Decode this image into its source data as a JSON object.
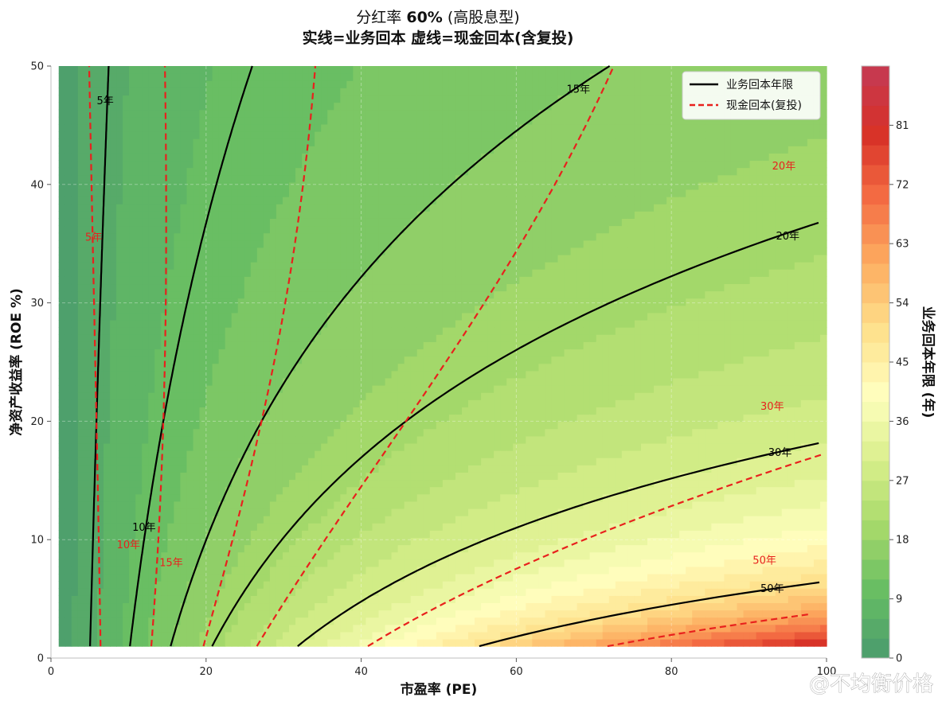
{
  "title": {
    "line1_prefix": "分红率 ",
    "line1_bold": "60%",
    "line1_suffix": " (高股息型)",
    "line2": "实线=业务回本  虚线=现金回本(含复投)"
  },
  "watermark": "@不均衡价格",
  "chart_data": {
    "type": "heatmap",
    "description_free": true,
    "xlabel": "市盈率 (PE)",
    "ylabel": "净资产收益率 (ROE %)",
    "xlim": [
      0,
      100
    ],
    "ylim": [
      0,
      50
    ],
    "x_ticks": [
      0,
      20,
      40,
      60,
      80,
      100
    ],
    "y_ticks": [
      0,
      10,
      20,
      30,
      40,
      50
    ],
    "grid": true,
    "legend_position": "top-right",
    "legend": [
      {
        "label": "业务回本年限",
        "style": "solid",
        "color": "#000000"
      },
      {
        "label": "现金回本(复投)",
        "style": "dashed",
        "color": "#e8211d"
      }
    ],
    "colorbar": {
      "label": "业务回本年限 (年)",
      "range": [
        0,
        90
      ],
      "ticks": [
        0,
        9,
        18,
        27,
        36,
        45,
        54,
        63,
        72,
        81
      ],
      "levels": 30,
      "colormap": [
        "#4a9b6e",
        "#66bd63",
        "#a6d96a",
        "#d9ef8b",
        "#ffffbf",
        "#fee08b",
        "#fdae61",
        "#f46d43",
        "#d73027",
        "#c43b55"
      ]
    },
    "data_x_range": [
      1,
      100
    ],
    "data_y_range": [
      1,
      50
    ],
    "contours": [
      {
        "series": "业务回本年限",
        "style": "solid",
        "levels": [
          5,
          10,
          15,
          20,
          30,
          50
        ],
        "labels": [
          "5年",
          "10年",
          "15年",
          "20年",
          "30年",
          "50年"
        ],
        "label_positions": [
          [
            7,
            47
          ],
          [
            12,
            11
          ],
          [
            68,
            48
          ],
          [
            95,
            35.6
          ],
          [
            94,
            17.3
          ],
          [
            93,
            5.8
          ]
        ]
      },
      {
        "series": "现金回本(复投)",
        "style": "dashed",
        "levels": [
          5,
          10,
          15,
          20,
          30,
          50
        ],
        "labels": [
          "5年",
          "10年",
          "15年",
          "20年",
          "30年",
          "50年"
        ],
        "label_positions": [
          [
            5.5,
            35.5
          ],
          [
            10,
            9.5
          ],
          [
            15.5,
            8
          ],
          [
            94.5,
            41.5
          ],
          [
            93,
            21.2
          ],
          [
            92,
            8.2
          ]
        ]
      }
    ],
    "colors": {
      "solid_contour": "#000000",
      "dashed_contour": "#e8211d"
    }
  }
}
